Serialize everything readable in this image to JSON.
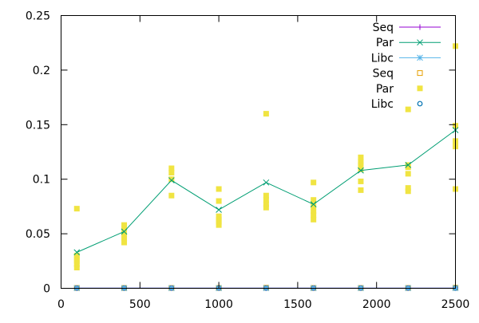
{
  "chart_data": {
    "type": "scatter",
    "x_ticks": [
      "0",
      "500",
      "1000",
      "1500",
      "2000",
      "2500"
    ],
    "y_ticks": [
      "0",
      "0.05",
      "0.1",
      "0.15",
      "0.2",
      "0.25"
    ],
    "xlim": [
      0,
      2500
    ],
    "ylim": [
      0,
      0.25
    ],
    "grid": false,
    "legend_position": "top-right",
    "lines": [
      {
        "name": "Seq",
        "color": "#9400d3",
        "marker": "plus",
        "x": [
          100,
          400,
          700,
          1000,
          1300,
          1600,
          1900,
          2200,
          2500
        ],
        "y": [
          0.0002,
          0.0002,
          0.0002,
          0.0002,
          0.0002,
          0.0002,
          0.0002,
          0.0002,
          0.0002
        ]
      },
      {
        "name": "Par",
        "color": "#009e73",
        "marker": "cross",
        "x": [
          100,
          400,
          700,
          1000,
          1300,
          1600,
          1900,
          2200,
          2500
        ],
        "y": [
          0.033,
          0.052,
          0.099,
          0.072,
          0.097,
          0.077,
          0.108,
          0.113,
          0.145
        ]
      },
      {
        "name": "Libc",
        "color": "#56b4e9",
        "marker": "star",
        "x": [
          100,
          400,
          700,
          1000,
          1300,
          1600,
          1900,
          2200,
          2500
        ],
        "y": [
          0.0002,
          0.0002,
          0.0002,
          0.0002,
          0.0002,
          0.0002,
          0.0002,
          0.0002,
          0.0002
        ]
      }
    ],
    "points": [
      {
        "name": "Seq",
        "color": "#e69f00",
        "marker": "open-square",
        "x": [
          100,
          400,
          700,
          1000,
          1300,
          1600,
          1900,
          2200,
          2500
        ],
        "y": [
          0.0003,
          0.0003,
          0.0003,
          0.0003,
          0.0005,
          0.0003,
          0.0003,
          0.0003,
          0.0005
        ]
      },
      {
        "name": "Par",
        "color": "#f0e442",
        "marker": "filled-square",
        "x": [
          100,
          100,
          100,
          100,
          100,
          100,
          400,
          400,
          400,
          400,
          400,
          700,
          700,
          700,
          700,
          1000,
          1000,
          1000,
          1000,
          1000,
          1000,
          1300,
          1300,
          1300,
          1300,
          1300,
          1600,
          1600,
          1600,
          1600,
          1600,
          1600,
          1900,
          1900,
          1900,
          1900,
          1900,
          1900,
          2200,
          2200,
          2200,
          2200,
          2200,
          2200,
          2500,
          2500,
          2500,
          2500,
          2500,
          2500
        ],
        "y": [
          0.073,
          0.03,
          0.027,
          0.025,
          0.022,
          0.019,
          0.058,
          0.055,
          0.05,
          0.046,
          0.042,
          0.11,
          0.106,
          0.1,
          0.085,
          0.091,
          0.08,
          0.066,
          0.063,
          0.061,
          0.058,
          0.16,
          0.085,
          0.081,
          0.077,
          0.074,
          0.097,
          0.081,
          0.076,
          0.071,
          0.067,
          0.063,
          0.12,
          0.116,
          0.113,
          0.109,
          0.098,
          0.09,
          0.164,
          0.113,
          0.111,
          0.105,
          0.092,
          0.089,
          0.222,
          0.149,
          0.135,
          0.132,
          0.13,
          0.091
        ]
      },
      {
        "name": "Libc",
        "color": "#0072b2",
        "marker": "open-circle",
        "x": [
          100,
          400,
          700,
          1000,
          1300,
          1600,
          1900,
          2200,
          2500
        ],
        "y": [
          0.0002,
          0.0002,
          0.0002,
          0.0002,
          0.0002,
          0.0002,
          0.0002,
          0.0002,
          0.0002
        ]
      }
    ]
  }
}
